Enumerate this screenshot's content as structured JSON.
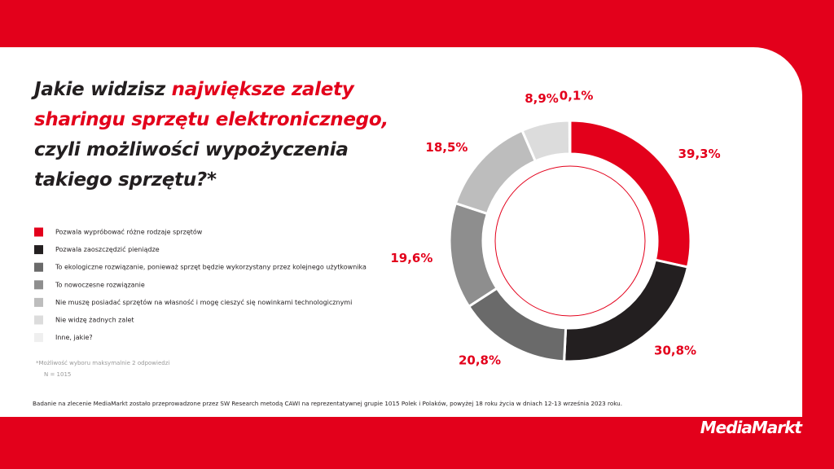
{
  "chart_data": {
    "type": "donut",
    "title_lines": [
      "Jakie widzisz",
      "największe zalety",
      "sharingu sprzętu elektronicznego,",
      "czyli możliwości wypożyczenia",
      "takiego sprzętu?*"
    ],
    "categories": [
      "Pozwala wypróbować różne rodzaje sprzętów",
      "Pozwala zaoszczędzić pieniądze",
      "To ekologiczne rozwiązanie, ponieważ sprzęt będzie wykorzystany przez kolejnego użytkownika",
      "To nowoczesne rozwiązanie",
      "Nie muszę posiadać sprzętów na własność i mogę cieszyć się nowinkami technologicznymi",
      "Nie widzę żadnych zalet",
      "Inne, jakie?"
    ],
    "values": [
      39.3,
      30.8,
      20.8,
      19.6,
      18.5,
      8.9,
      0.1
    ],
    "value_labels": [
      "39,3%",
      "30,8%",
      "20,8%",
      "19,6%",
      "18,5%",
      "8,9%",
      "0,1%"
    ],
    "colors": [
      "#e3001b",
      "#231f20",
      "#6a6a6a",
      "#8e8e8e",
      "#bdbdbd",
      "#dcdcdc",
      "#efefef"
    ],
    "footnote": "*Możliwość wyboru maksymalnie 2 odpowiedzi",
    "sample": "N = 1015",
    "source": "Badanie na zlecenie MediaMarkt zostało przeprowadzone przez SW Research metodą CAWI na reprezentatywnej grupie 1015 Polek i Polaków, powyżej 18 roku życia w dniach 12-13 września 2023 roku.",
    "logo": "MediaMarkt"
  }
}
